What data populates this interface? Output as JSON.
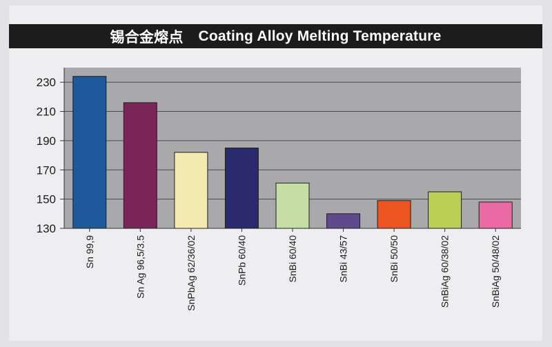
{
  "title": {
    "zh": "锡合金熔点",
    "en": "Coating Alloy Melting Temperature"
  },
  "chart_data": {
    "type": "bar",
    "categories": [
      "Sn 99,9",
      "Sn Ag 96,5/3.5",
      "SnPbAg 62/36/02",
      "SnPb 60/40",
      "SnBi 60/40",
      "SnBi 43/57",
      "SnBi 50/50",
      "SnBiAg 60/38/02",
      "SnBiAg 50/48/02"
    ],
    "values": [
      234,
      216,
      182,
      185,
      161,
      140,
      149,
      155,
      148
    ],
    "colors": [
      "#1f5a9c",
      "#7a2458",
      "#f2eaae",
      "#2a2a6e",
      "#c6dea4",
      "#5e4a8c",
      "#ec5420",
      "#bccf55",
      "#ec6aa3"
    ],
    "yticks": [
      130,
      150,
      170,
      190,
      210,
      230
    ],
    "ylim": [
      130,
      240
    ],
    "grid": true,
    "plot_background": "#a9a9ab"
  }
}
